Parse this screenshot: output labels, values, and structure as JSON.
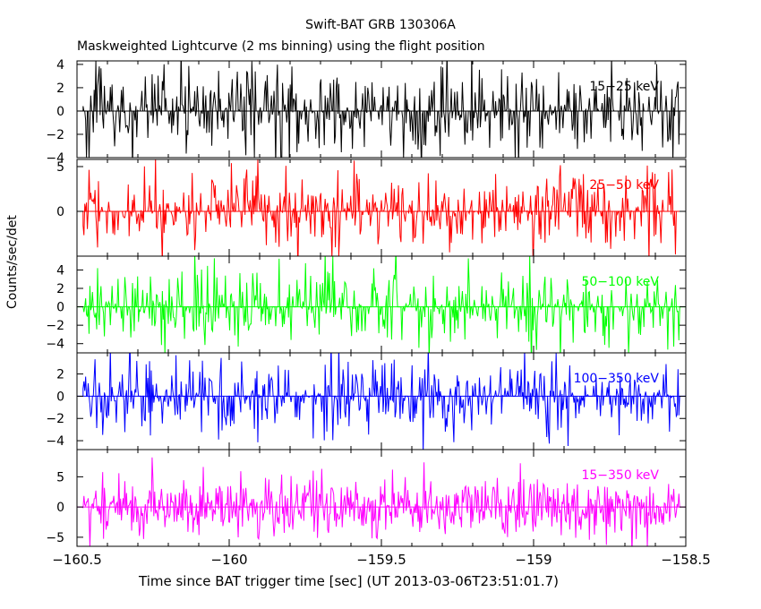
{
  "title": "Swift-BAT GRB 130306A",
  "subtitle": "Maskweighted Lightcurve (2 ms binning) using the flight position",
  "chart_data": {
    "type": "line",
    "xlabel": "Time since BAT trigger time [sec] (UT 2013-03-06T23:51:01.7)",
    "ylabel": "Counts/sec/det",
    "xlim": [
      -160.5,
      -158.5
    ],
    "x_ticks": [
      -160.5,
      -160,
      -159.5,
      -159,
      -158.5
    ],
    "x_tick_labels": [
      "−160.5",
      "−160",
      "−159.5",
      "−159",
      "−158.5"
    ],
    "grid": false,
    "panels": [
      {
        "name": "15-25 keV",
        "label": "15−25 keV",
        "color": "#000000",
        "ylim": [
          -4,
          4.3
        ],
        "yticks": [
          -4,
          -2,
          0,
          2,
          4
        ],
        "amplitude": 1.9
      },
      {
        "name": "25-50 keV",
        "label": "25−50 keV",
        "color": "#ff0000",
        "ylim": [
          -5,
          5.8
        ],
        "yticks": [
          0,
          5
        ],
        "amplitude": 2.3
      },
      {
        "name": "50-100 keV",
        "label": "50−100 keV",
        "color": "#00ff00",
        "ylim": [
          -5,
          5.5
        ],
        "yticks": [
          -4,
          -2,
          0,
          2,
          4
        ],
        "amplitude": 2.0
      },
      {
        "name": "100-350 keV",
        "label": "100−350 keV",
        "color": "#0000ff",
        "ylim": [
          -4.8,
          3.9
        ],
        "yticks": [
          -4,
          -2,
          0,
          2
        ],
        "amplitude": 1.8
      },
      {
        "name": "15-350 keV",
        "label": "15−350 keV",
        "color": "#ff00ff",
        "ylim": [
          -6.5,
          9.5
        ],
        "yticks": [
          -5,
          0,
          5
        ],
        "amplitude": 2.4
      }
    ],
    "series_x_range": [
      -160.48,
      -158.52
    ],
    "bin_width_sec": 0.002
  }
}
